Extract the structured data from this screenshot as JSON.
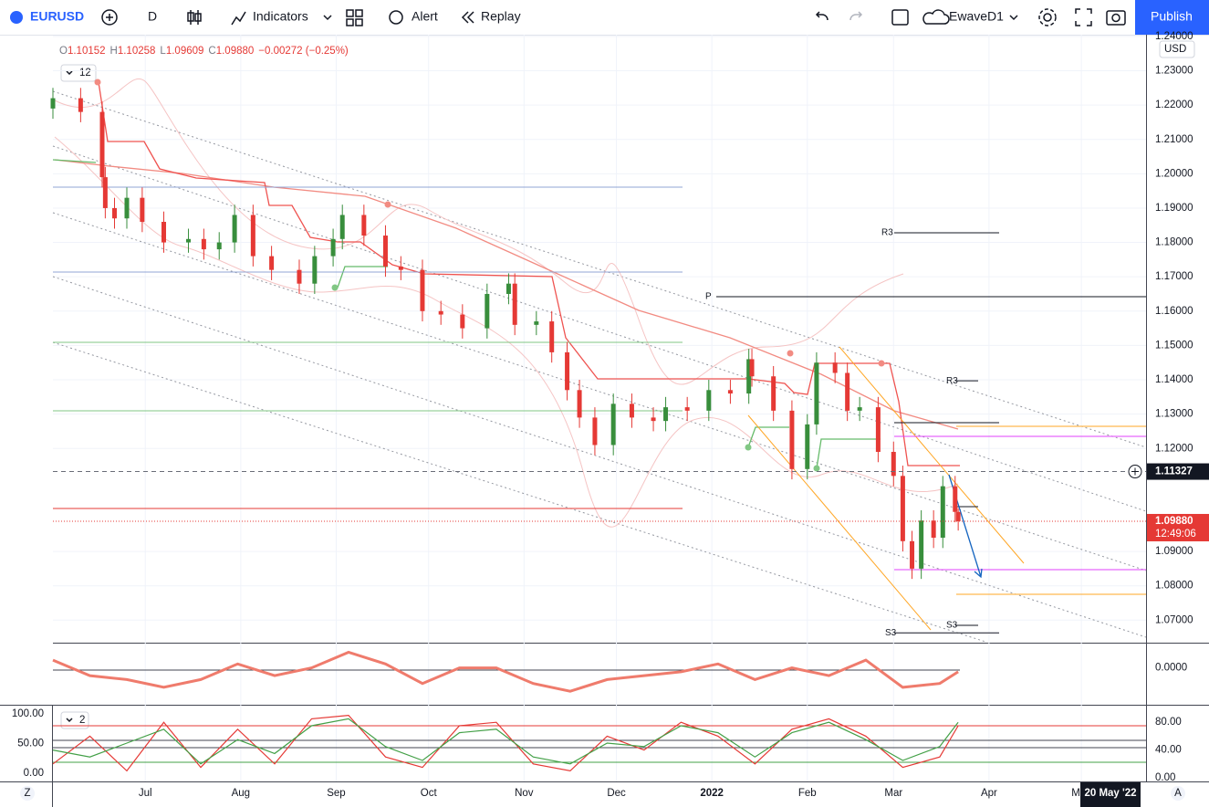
{
  "toolbar": {
    "symbol": "EURUSD",
    "interval": "D",
    "indicators": "Indicators",
    "alert": "Alert",
    "replay": "Replay",
    "layout": "EwaveD1",
    "publish": "Publish"
  },
  "legend": {
    "ohlc": [
      {
        "key": "O",
        "value": "1.10152"
      },
      {
        "key": "H",
        "value": "1.10258"
      },
      {
        "key": "L",
        "value": "1.09609"
      },
      {
        "key": "C",
        "value": "1.09880"
      }
    ],
    "change": "−0.00272 (−0.25%)",
    "input": "12"
  },
  "axis": {
    "currency": "USD",
    "left_button": "Z",
    "right_button": "A",
    "date_label": "20 May '22"
  },
  "chart_data": [
    {
      "type": "candlestick",
      "up_color": "#388e3c",
      "down_color": "#e53935",
      "x": [
        0,
        9,
        16,
        17,
        20,
        24,
        29,
        36,
        44,
        49,
        54,
        59,
        65,
        71,
        80,
        85,
        91,
        94,
        101,
        108,
        113,
        120,
        126,
        133,
        141,
        148,
        150,
        157,
        162,
        167,
        171,
        176,
        182,
        188,
        195,
        199,
        206,
        213,
        220,
        226,
        227,
        234,
        240,
        245,
        248,
        254,
        258,
        262,
        268,
        273,
        276,
        279,
        282,
        286,
        289,
        293,
        294
      ],
      "open": [
        1.219,
        1.222,
        1.218,
        1.199,
        1.19,
        1.187,
        1.193,
        1.186,
        1.18,
        1.181,
        1.178,
        1.18,
        1.188,
        1.176,
        1.172,
        1.168,
        1.176,
        1.181,
        1.188,
        1.182,
        1.173,
        1.172,
        1.16,
        1.159,
        1.155,
        1.165,
        1.168,
        1.156,
        1.157,
        1.148,
        1.137,
        1.129,
        1.121,
        1.133,
        1.129,
        1.128,
        1.132,
        1.131,
        1.137,
        1.136,
        1.146,
        1.141,
        1.131,
        1.114,
        1.127,
        1.145,
        1.142,
        1.131,
        1.132,
        1.119,
        1.112,
        1.093,
        1.085,
        1.099,
        1.094,
        1.109,
        1.10152
      ],
      "high": [
        1.225,
        1.225,
        1.221,
        1.202,
        1.193,
        1.196,
        1.196,
        1.189,
        1.184,
        1.184,
        1.183,
        1.191,
        1.191,
        1.179,
        1.175,
        1.179,
        1.184,
        1.191,
        1.191,
        1.185,
        1.176,
        1.175,
        1.163,
        1.162,
        1.168,
        1.171,
        1.171,
        1.16,
        1.16,
        1.151,
        1.14,
        1.132,
        1.136,
        1.136,
        1.132,
        1.135,
        1.135,
        1.14,
        1.14,
        1.149,
        1.149,
        1.144,
        1.134,
        1.13,
        1.148,
        1.148,
        1.145,
        1.135,
        1.135,
        1.122,
        1.115,
        1.096,
        1.102,
        1.102,
        1.112,
        1.112,
        1.10258
      ],
      "low": [
        1.216,
        1.215,
        1.196,
        1.187,
        1.184,
        1.184,
        1.183,
        1.177,
        1.177,
        1.175,
        1.175,
        1.177,
        1.173,
        1.169,
        1.165,
        1.165,
        1.173,
        1.178,
        1.179,
        1.17,
        1.169,
        1.157,
        1.156,
        1.152,
        1.152,
        1.162,
        1.153,
        1.153,
        1.145,
        1.134,
        1.126,
        1.118,
        1.118,
        1.126,
        1.125,
        1.125,
        1.128,
        1.128,
        1.133,
        1.133,
        1.138,
        1.128,
        1.111,
        1.111,
        1.124,
        1.139,
        1.128,
        1.128,
        1.116,
        1.109,
        1.09,
        1.082,
        1.082,
        1.091,
        1.091,
        1.0985,
        1.09609
      ],
      "close": [
        1.222,
        1.218,
        1.199,
        1.19,
        1.187,
        1.193,
        1.186,
        1.18,
        1.181,
        1.178,
        1.18,
        1.188,
        1.176,
        1.172,
        1.168,
        1.176,
        1.181,
        1.188,
        1.182,
        1.173,
        1.172,
        1.16,
        1.159,
        1.155,
        1.165,
        1.168,
        1.156,
        1.157,
        1.148,
        1.137,
        1.129,
        1.121,
        1.133,
        1.129,
        1.128,
        1.132,
        1.131,
        1.137,
        1.136,
        1.146,
        1.141,
        1.131,
        1.114,
        1.127,
        1.145,
        1.142,
        1.131,
        1.132,
        1.119,
        1.112,
        1.093,
        1.085,
        1.099,
        1.094,
        1.109,
        1.10152,
        1.0988
      ],
      "xlim": [
        0,
        355
      ],
      "xticks": [
        {
          "value": 30,
          "label": "Jul"
        },
        {
          "value": 61,
          "label": "Aug"
        },
        {
          "value": 92,
          "label": "Sep"
        },
        {
          "value": 122,
          "label": "Oct"
        },
        {
          "value": 153,
          "label": "Nov"
        },
        {
          "value": 183,
          "label": "Dec"
        },
        {
          "value": 214,
          "label": "2022"
        },
        {
          "value": 245,
          "label": "Feb"
        },
        {
          "value": 273,
          "label": "Mar"
        },
        {
          "value": 304,
          "label": "Apr"
        },
        {
          "value": 334,
          "label": "May"
        }
      ],
      "ylim": [
        1.0637,
        1.2405
      ],
      "yticks": [
        {
          "value": 1.07,
          "label": "1.07000"
        },
        {
          "value": 1.08,
          "label": "1.08000"
        },
        {
          "value": 1.09,
          "label": "1.09000"
        },
        {
          "value": 1.12,
          "label": "1.12000"
        },
        {
          "value": 1.13,
          "label": "1.13000"
        },
        {
          "value": 1.14,
          "label": "1.14000"
        },
        {
          "value": 1.15,
          "label": "1.15000"
        },
        {
          "value": 1.16,
          "label": "1.16000"
        },
        {
          "value": 1.17,
          "label": "1.17000"
        },
        {
          "value": 1.18,
          "label": "1.18000"
        },
        {
          "value": 1.19,
          "label": "1.19000"
        },
        {
          "value": 1.2,
          "label": "1.20000"
        },
        {
          "value": 1.21,
          "label": "1.21000"
        },
        {
          "value": 1.22,
          "label": "1.22000"
        },
        {
          "value": 1.23,
          "label": "1.23000"
        },
        {
          "value": 1.24,
          "label": "1.24000"
        }
      ],
      "grid": true,
      "crosshair": {
        "value": 1.11327,
        "label": "1.11327"
      },
      "last_price": {
        "label": "1.09880",
        "countdown": "12:49:06"
      },
      "pivots": [
        {
          "label": "R3",
          "value": 1.1828
        },
        {
          "label": "P",
          "value": 1.1642
        },
        {
          "label": "R3",
          "value": 1.1397
        },
        {
          "label": "S3",
          "value": 1.0685
        },
        {
          "label": "S3",
          "value": 1.0663
        }
      ]
    },
    {
      "type": "line",
      "x": [
        0,
        12,
        24,
        36,
        48,
        60,
        72,
        84,
        96,
        108,
        120,
        132,
        144,
        156,
        168,
        180,
        192,
        204,
        216,
        228,
        240,
        252,
        264,
        276,
        288,
        294
      ],
      "series": [
        {
          "color": "#ef7b6c",
          "values": [
            0.002,
            -0.002,
            -0.003,
            -0.005,
            -0.003,
            0.001,
            -0.002,
            0,
            0.004,
            0.001,
            -0.004,
            0,
            0,
            -0.004,
            -0.006,
            -0.003,
            -0.002,
            -0.001,
            0.001,
            -0.003,
            0,
            -0.002,
            0.002,
            -0.005,
            -0.004,
            -0.001
          ]
        }
      ],
      "xlim": [
        0,
        355
      ],
      "ylim": [
        -0.009,
        0.006
      ],
      "yticks": [
        {
          "value": 0,
          "label": "0.0000"
        }
      ]
    },
    {
      "type": "line",
      "x": [
        0,
        12,
        24,
        36,
        48,
        60,
        72,
        84,
        96,
        108,
        120,
        132,
        144,
        156,
        168,
        180,
        192,
        204,
        216,
        228,
        240,
        252,
        264,
        276,
        288,
        294
      ],
      "series": [
        {
          "color": "#e53935",
          "values": [
            20,
            60,
            10,
            80,
            15,
            70,
            20,
            85,
            90,
            30,
            15,
            75,
            80,
            20,
            10,
            60,
            40,
            80,
            60,
            20,
            70,
            85,
            60,
            15,
            30,
            75
          ]
        },
        {
          "color": "#43a047",
          "values": [
            40,
            30,
            50,
            70,
            20,
            55,
            35,
            75,
            85,
            45,
            25,
            65,
            70,
            30,
            20,
            50,
            45,
            75,
            65,
            30,
            65,
            80,
            55,
            25,
            45,
            80
          ]
        }
      ],
      "xlim": [
        0,
        355
      ],
      "ylim": [
        0,
        100
      ],
      "yticks": [
        {
          "value": 0,
          "label": "0.00"
        },
        {
          "value": 40,
          "label": "40.00"
        },
        {
          "value": 80,
          "label": "80.00"
        }
      ],
      "y2lim": [
        0,
        100
      ],
      "y2ticks": [
        {
          "value": 0,
          "label": "0.00"
        },
        {
          "value": 50,
          "label": "50.00"
        },
        {
          "value": 100,
          "label": "100.00"
        }
      ],
      "input": "2"
    }
  ]
}
